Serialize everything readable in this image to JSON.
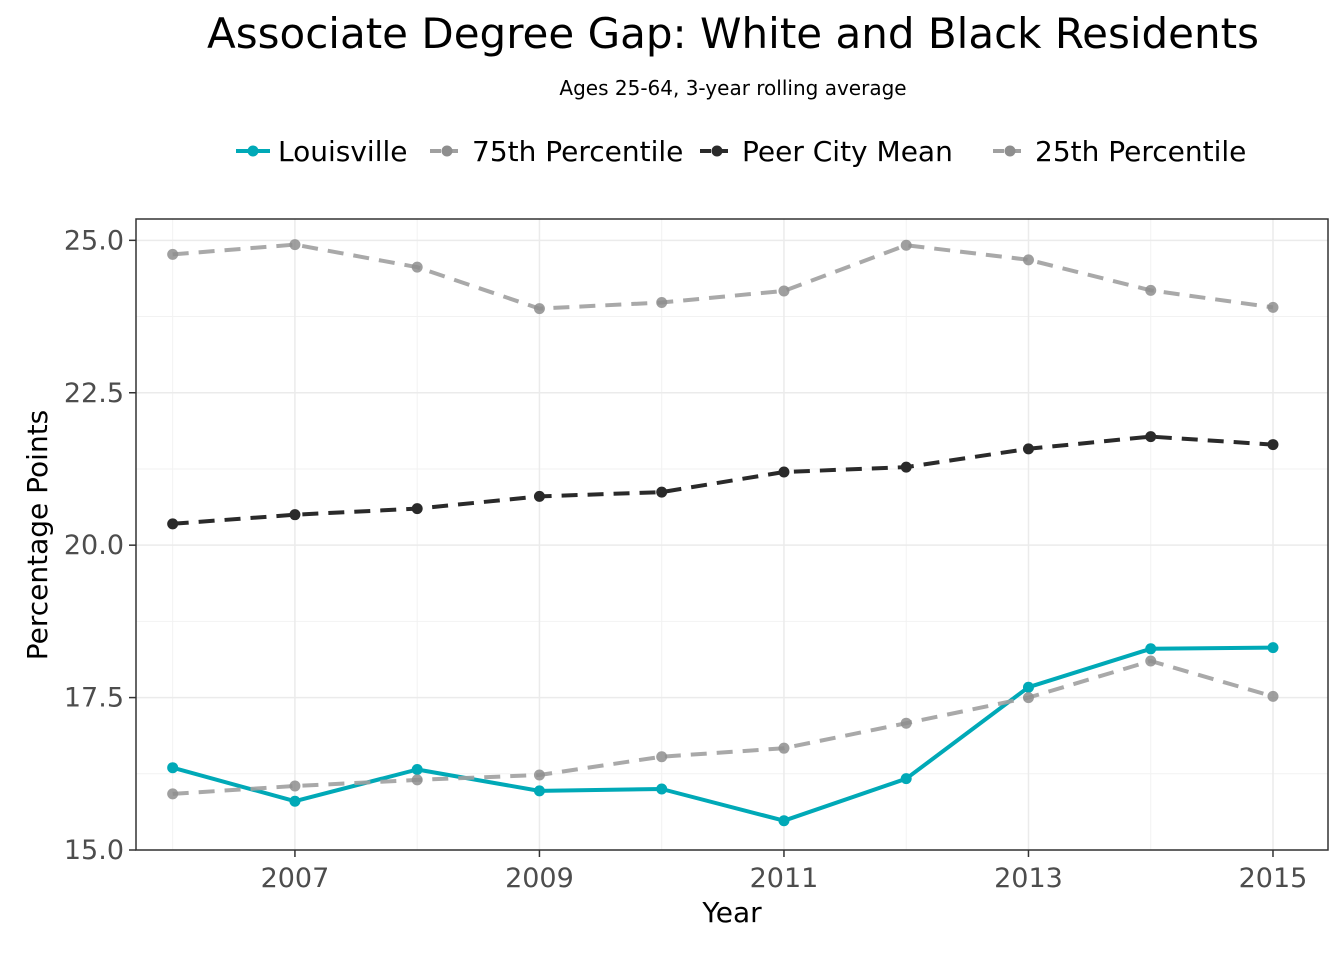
{
  "chart_data": {
    "type": "line",
    "title": "Associate Degree Gap: White and Black Residents",
    "subtitle": "Ages 25-64, 3-year rolling average",
    "xlabel": "Year",
    "ylabel": "Percentage Points",
    "xlim": [
      2005.7,
      2015.45
    ],
    "ylim": [
      15.0,
      25.35
    ],
    "x_ticks": [
      2007,
      2009,
      2011,
      2013,
      2015
    ],
    "y_ticks": [
      15.0,
      17.5,
      20.0,
      22.5,
      25.0
    ],
    "y_tick_labels": [
      "15.0",
      "17.5",
      "20.0",
      "22.5",
      "25.0"
    ],
    "grid": true,
    "legend_position": "top",
    "x": [
      2006,
      2007,
      2008,
      2009,
      2010,
      2011,
      2012,
      2013,
      2014,
      2015
    ],
    "series": [
      {
        "name": "Louisville",
        "color": "#00a9b7",
        "dash": "solid",
        "values": [
          16.35,
          15.8,
          16.32,
          15.97,
          16.0,
          15.48,
          16.17,
          17.67,
          18.3,
          18.32
        ]
      },
      {
        "name": "75th Percentile",
        "color": "#a0a0a0",
        "dash": "dashed",
        "values": [
          24.77,
          24.93,
          24.56,
          23.88,
          23.98,
          24.17,
          24.92,
          24.68,
          24.18,
          23.9
        ]
      },
      {
        "name": "Peer City Mean",
        "color": "#2a2a2a",
        "dash": "dashed",
        "values": [
          20.35,
          20.5,
          20.6,
          20.8,
          20.87,
          21.2,
          21.28,
          21.58,
          21.78,
          21.65
        ]
      },
      {
        "name": "25th Percentile",
        "color": "#a0a0a0",
        "dash": "dashed",
        "values": [
          15.92,
          16.05,
          16.15,
          16.23,
          16.53,
          16.67,
          17.08,
          17.5,
          18.1,
          17.52
        ]
      }
    ]
  }
}
